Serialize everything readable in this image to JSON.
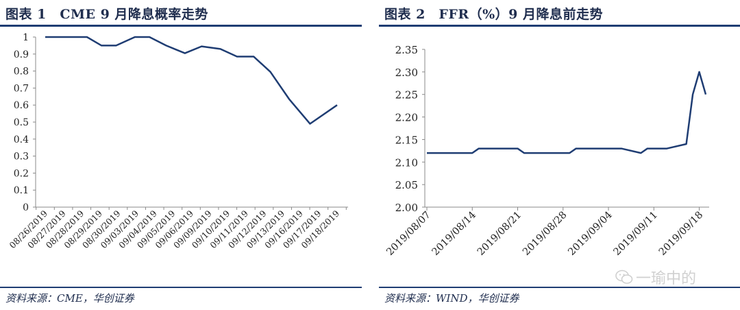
{
  "left": {
    "title": "图表 1　CME 9 月降息概率走势",
    "source": "资料来源：CME，华创证券"
  },
  "right": {
    "title": "图表 2　FFR（%）9 月降息前走势",
    "source": "资料来源：WIND，华创证券"
  },
  "watermark": {
    "text": "一瑜中的",
    "icon": "wechat-icon"
  },
  "colors": {
    "line": "#1f3d73",
    "axis": "#888888",
    "text": "#1f2d4e"
  },
  "chart_data": [
    {
      "type": "line",
      "categories": [
        "08/26/2019",
        "08/27/2019",
        "08/28/2019",
        "08/29/2019",
        "08/30/2019",
        "09/03/2019",
        "09/04/2019",
        "09/05/2019",
        "09/06/2019",
        "09/09/2019",
        "09/10/2019",
        "09/11/2019",
        "09/12/2019",
        "09/13/2019",
        "09/16/2019",
        "09/17/2019",
        "09/18/2019"
      ],
      "series": [
        {
          "values": [
            1.0,
            1.0,
            1.0,
            0.95,
            0.95,
            1.0,
            1.0,
            0.95,
            0.905,
            0.945,
            0.93,
            0.885,
            0.885,
            0.795,
            0.635,
            0.49,
            0.6
          ],
          "x": [
            0,
            1,
            2,
            2.7,
            3.4,
            4.3,
            5.0,
            5.8,
            6.7,
            7.5,
            8.4,
            9.2,
            10.0,
            10.8,
            11.7,
            12.7,
            14.0
          ]
        }
      ],
      "yticks": [
        "0",
        "0.1",
        "0.2",
        "0.3",
        "0.4",
        "0.5",
        "0.6",
        "0.7",
        "0.8",
        "0.9",
        "1"
      ],
      "ylim": [
        0,
        1
      ],
      "grid": false
    },
    {
      "type": "line",
      "categories": [
        "2019/08/07",
        "2019/08/14",
        "2019/08/21",
        "2019/08/28",
        "2019/09/04",
        "2019/09/11",
        "2019/09/18"
      ],
      "x": [
        "2019-08-07",
        "2019-08-08",
        "2019-08-09",
        "2019-08-12",
        "2019-08-13",
        "2019-08-14",
        "2019-08-15",
        "2019-08-16",
        "2019-08-19",
        "2019-08-20",
        "2019-08-21",
        "2019-08-22",
        "2019-08-23",
        "2019-08-26",
        "2019-08-27",
        "2019-08-28",
        "2019-08-29",
        "2019-08-30",
        "2019-09-03",
        "2019-09-04",
        "2019-09-05",
        "2019-09-06",
        "2019-09-09",
        "2019-09-10",
        "2019-09-11",
        "2019-09-12",
        "2019-09-13",
        "2019-09-16",
        "2019-09-17",
        "2019-09-18",
        "2019-09-19"
      ],
      "series": [
        {
          "values": [
            2.12,
            2.12,
            2.12,
            2.12,
            2.12,
            2.12,
            2.13,
            2.13,
            2.13,
            2.13,
            2.13,
            2.12,
            2.12,
            2.12,
            2.12,
            2.12,
            2.12,
            2.13,
            2.13,
            2.13,
            2.13,
            2.13,
            2.12,
            2.13,
            2.13,
            2.13,
            2.13,
            2.14,
            2.25,
            2.3,
            2.25
          ]
        }
      ],
      "yticks": [
        "2.00",
        "2.05",
        "2.10",
        "2.15",
        "2.20",
        "2.25",
        "2.30",
        "2.35"
      ],
      "ylim": [
        2.0,
        2.35
      ],
      "grid": false
    }
  ]
}
